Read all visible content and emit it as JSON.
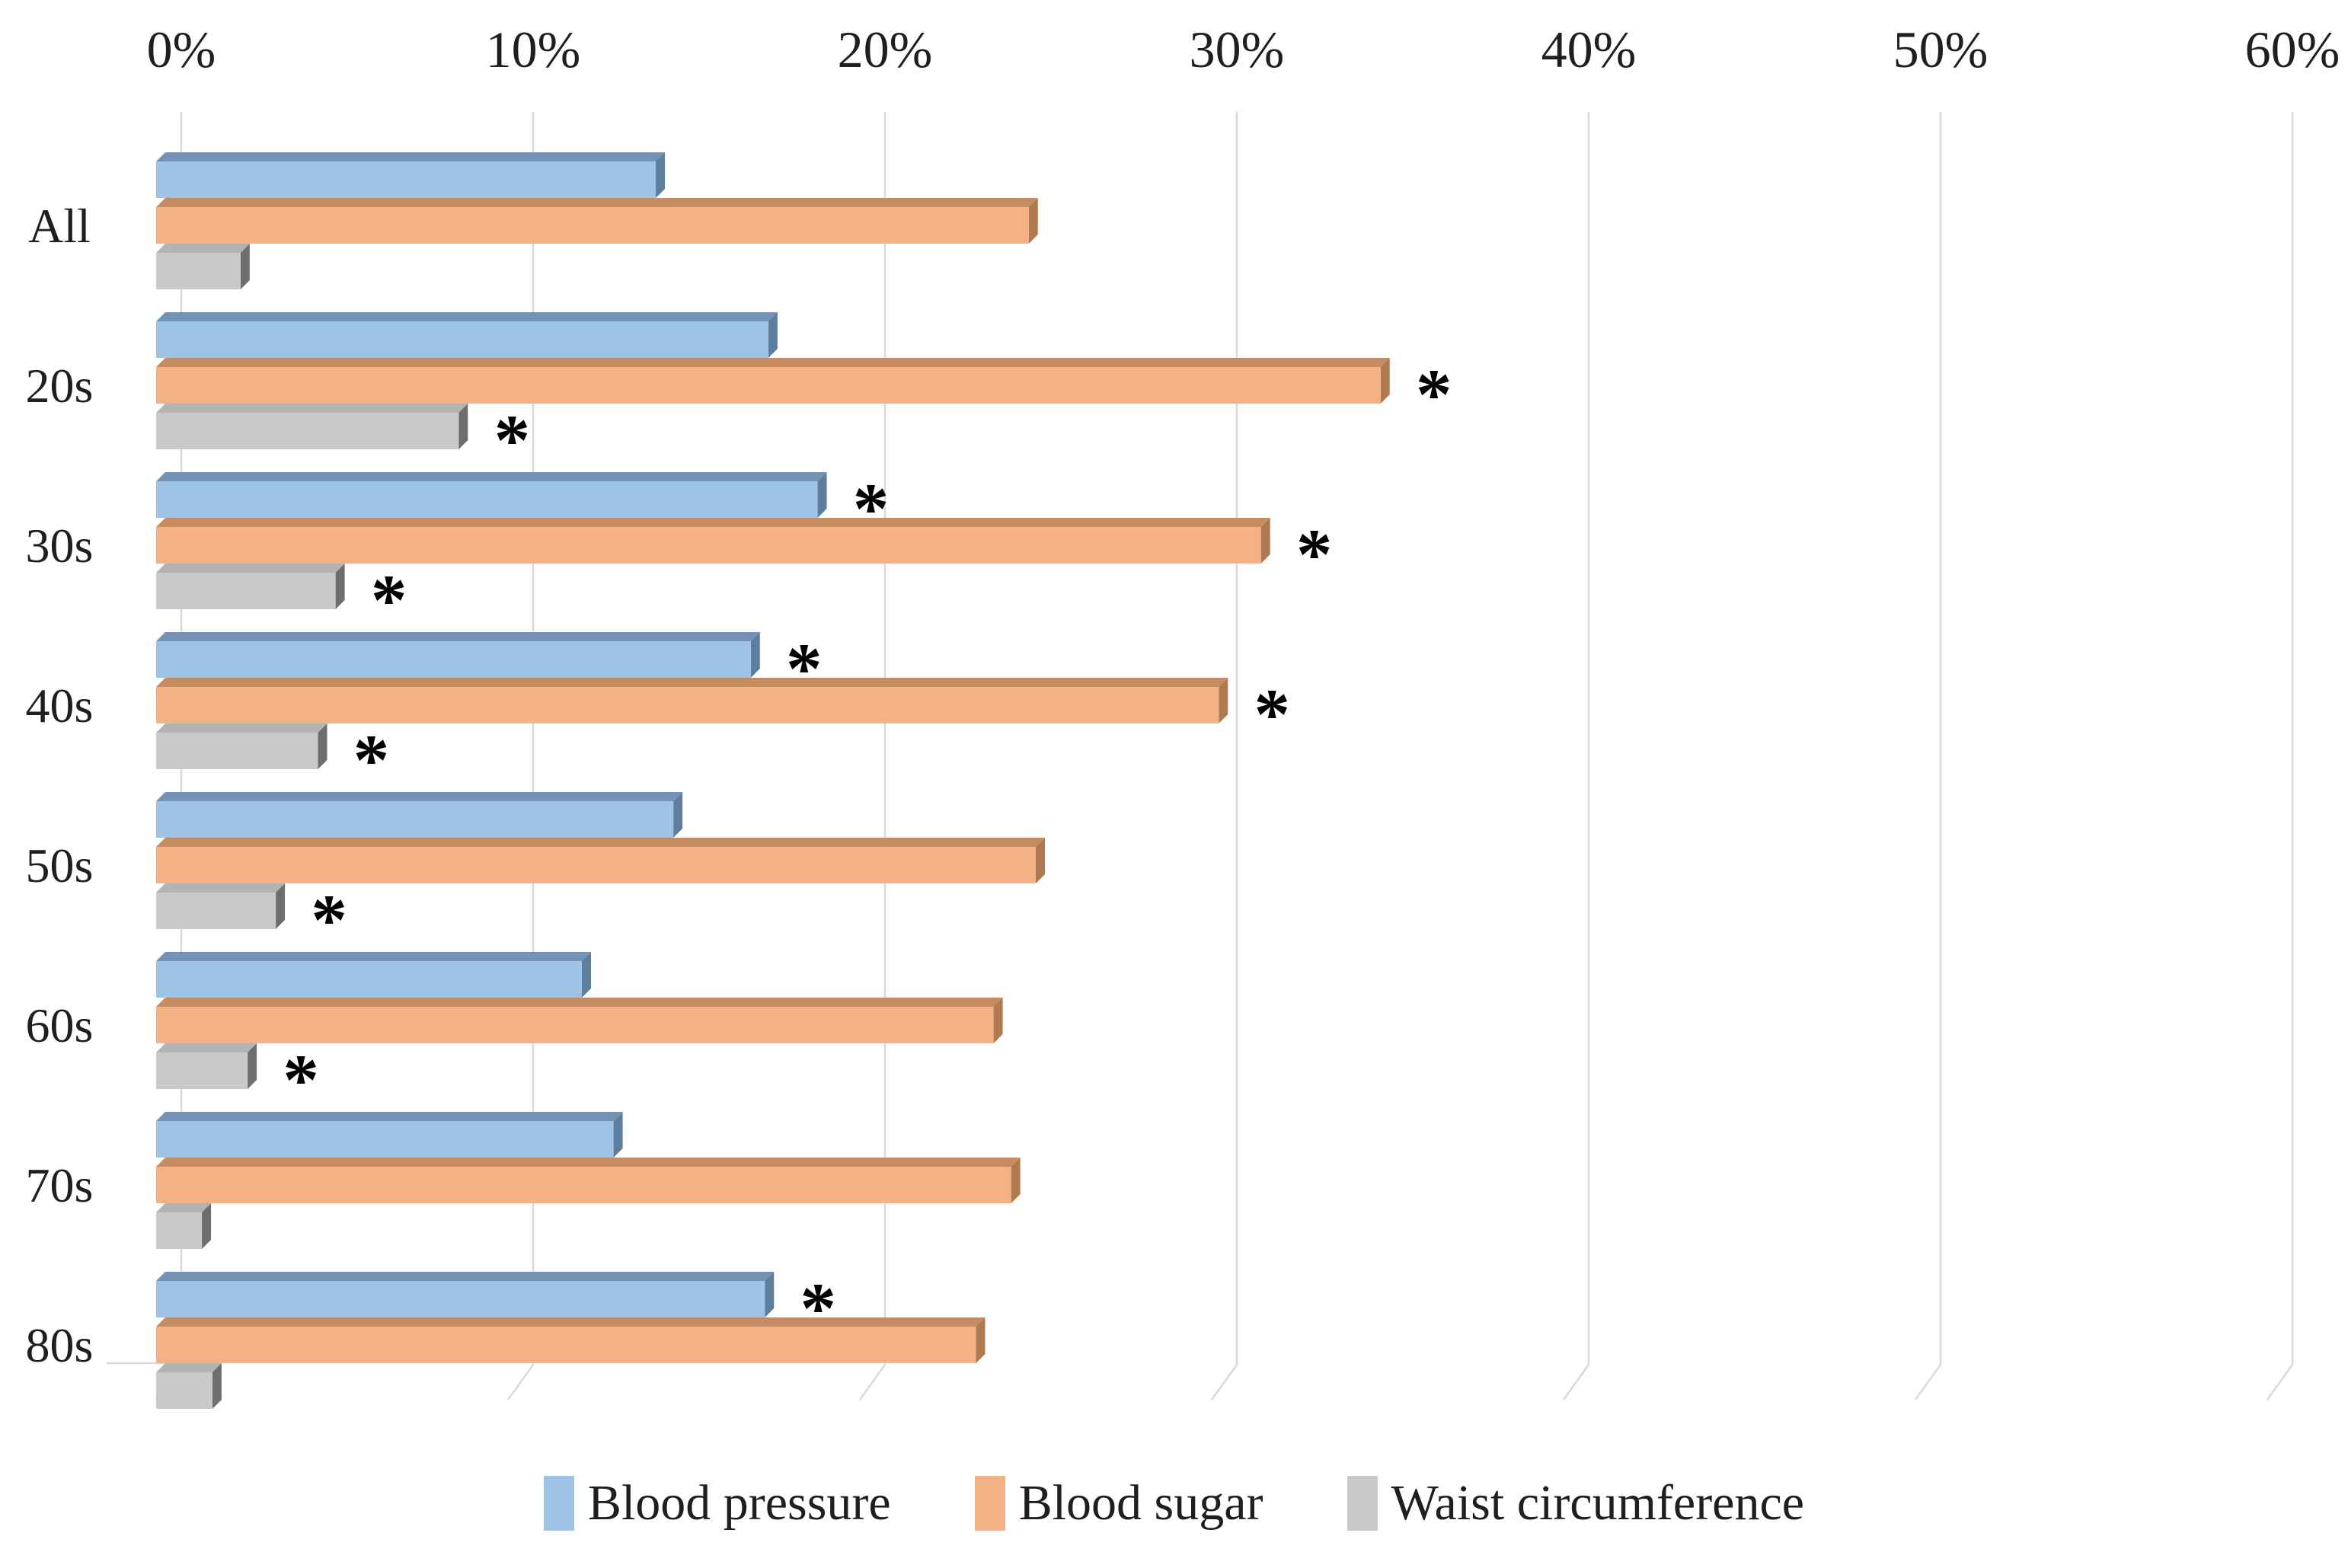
{
  "chart_data": {
    "type": "bar",
    "orientation": "horizontal",
    "style": "3d-beveled-bars",
    "title": "",
    "categories": [
      "All",
      "20s",
      "30s",
      "40s",
      "50s",
      "60s",
      "70s",
      "80s"
    ],
    "x_axis": {
      "unit": "%",
      "min": 0,
      "max": 60,
      "tick_step": 10,
      "tick_labels": [
        "0%",
        "10%",
        "20%",
        "30%",
        "40%",
        "50%",
        "60%"
      ],
      "position": "top"
    },
    "grid": "vertical-lines-on",
    "gridline_color": "#D9D9D9",
    "text_color": "#1f1f1f",
    "significance_marker": "*",
    "legend_position": "bottom",
    "series": [
      {
        "name": "Blood pressure",
        "color": "#9DC3E6",
        "color_top": "#7492B5",
        "color_side": "#5E7E9F",
        "values": [
          14.2,
          17.4,
          18.8,
          16.9,
          14.7,
          12.1,
          13.0,
          17.3
        ],
        "starred": [
          false,
          false,
          true,
          true,
          false,
          false,
          false,
          true
        ]
      },
      {
        "name": "Blood sugar",
        "color": "#F4B183",
        "color_top": "#C68C61",
        "color_side": "#B07A50",
        "values": [
          24.8,
          34.8,
          31.4,
          30.2,
          25.0,
          23.8,
          24.3,
          23.3
        ],
        "starred": [
          false,
          true,
          true,
          true,
          false,
          false,
          false,
          false
        ]
      },
      {
        "name": "Waist circumference",
        "color": "#C9C9C9",
        "color_top": "#B3B3B3",
        "color_side": "#6E6E6E",
        "values": [
          2.4,
          8.6,
          5.1,
          4.6,
          3.4,
          2.6,
          1.3,
          1.6
        ],
        "starred": [
          false,
          true,
          true,
          true,
          true,
          true,
          false,
          false
        ]
      }
    ]
  }
}
